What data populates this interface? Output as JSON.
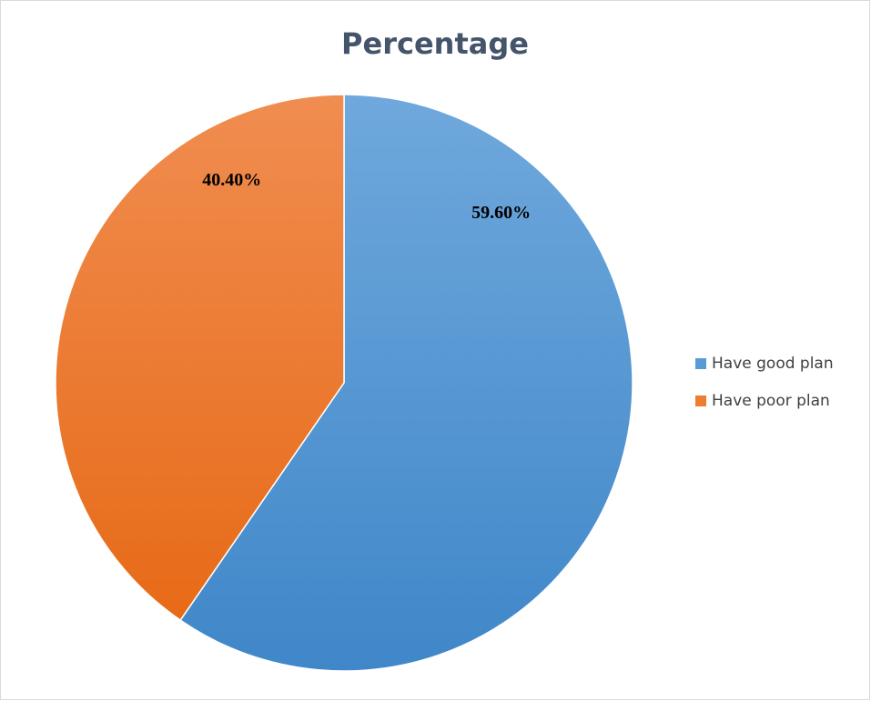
{
  "chart_data": {
    "type": "pie",
    "title": "Percentage",
    "categories": [
      "Have good plan",
      "Have poor plan"
    ],
    "values": [
      59.6,
      40.4
    ],
    "value_labels": [
      "59.60%",
      "40.40%"
    ],
    "colors": [
      "#5b9bd5",
      "#ed7d31"
    ],
    "legend": "right"
  }
}
